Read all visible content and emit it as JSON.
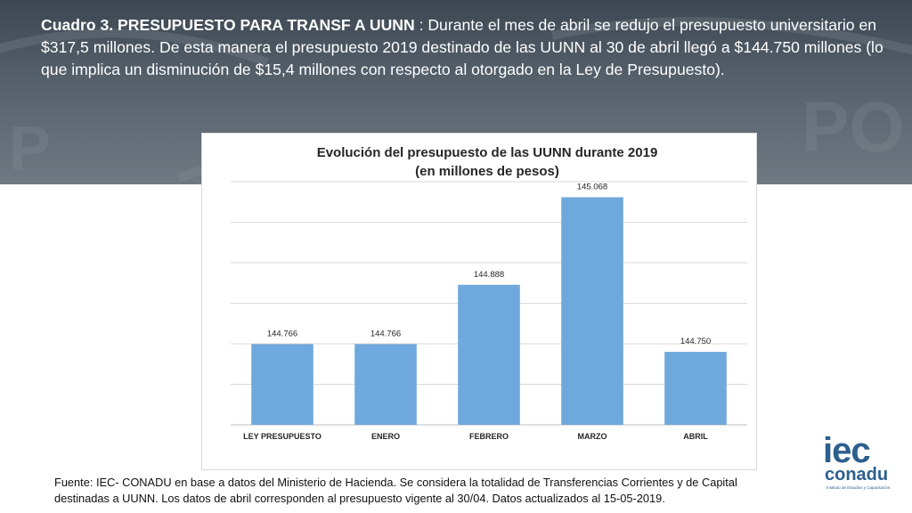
{
  "heading": {
    "title": "Cuadro 3. PRESUPUESTO PARA TRANSF A UUNN",
    "body": " : Durante el mes de abril se redujo el presupuesto universitario en $317,5 millones. De esta manera el presupuesto 2019 destinado de las UUNN al 30 de abril llegó a $144.750 millones (lo que implica un disminución de $15,4 millones con respecto al otorgado en la Ley de Presupuesto)."
  },
  "chart_data": {
    "type": "bar",
    "title": "Evolución del presupuesto de las UUNN durante 2019",
    "subtitle": "(en millones de pesos)",
    "categories": [
      "LEY PRESUPUESTO",
      "ENERO",
      "FEBRERO",
      "MARZO",
      "ABRIL"
    ],
    "values": [
      144766,
      144766,
      144888,
      145068,
      144750
    ],
    "data_labels": [
      "144.766",
      "144.766",
      "144.888",
      "145.068",
      "144.750"
    ],
    "ylim": [
      144600,
      145100
    ],
    "grid": true,
    "bar_color": "#6fa8dc",
    "xlabel": "",
    "ylabel": ""
  },
  "footnote": "Fuente: IEC- CONADU en base a datos del Ministerio de Hacienda. Se considera la totalidad de Transferencias Corrientes y de Capital destinadas a UUNN. Los datos de abril corresponden al presupuesto vigente al 30/04. Datos actualizados al 15-05-2019.",
  "logo": {
    "line1": "iec",
    "line2": "conadu",
    "line3": "Instituto de Estudios y Capacitación"
  },
  "colors": {
    "banner": "#4f5a65",
    "accent": "#2d5f8e"
  }
}
